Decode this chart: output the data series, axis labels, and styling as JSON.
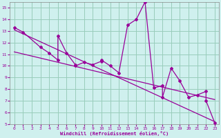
{
  "xlabel": "Windchill (Refroidissement éolien,°C)",
  "bg_color": "#cff0ee",
  "grid_color": "#99ccbb",
  "line_color": "#990099",
  "xlim": [
    -0.5,
    23.5
  ],
  "ylim": [
    5,
    15.5
  ],
  "yticks": [
    5,
    6,
    7,
    8,
    9,
    10,
    11,
    12,
    13,
    14,
    15
  ],
  "xticks": [
    0,
    1,
    2,
    3,
    4,
    5,
    6,
    7,
    8,
    9,
    10,
    11,
    12,
    13,
    14,
    15,
    16,
    17,
    18,
    19,
    20,
    21,
    22,
    23
  ],
  "series": [
    [
      0,
      13.3
    ],
    [
      1,
      12.9
    ],
    [
      3,
      11.6
    ],
    [
      4,
      11.1
    ],
    [
      5,
      10.5
    ],
    [
      5,
      12.6
    ],
    [
      6,
      11.1
    ],
    [
      7,
      10.1
    ],
    [
      7,
      10.0
    ],
    [
      8,
      10.3
    ],
    [
      9,
      10.1
    ],
    [
      10,
      10.4
    ],
    [
      10,
      10.5
    ],
    [
      11,
      10.0
    ],
    [
      12,
      9.4
    ],
    [
      13,
      13.5
    ],
    [
      14,
      14.0
    ],
    [
      15,
      15.5
    ],
    [
      16,
      8.1
    ],
    [
      17,
      8.3
    ],
    [
      17,
      7.3
    ],
    [
      18,
      9.8
    ],
    [
      19,
      8.7
    ],
    [
      20,
      7.3
    ],
    [
      21,
      7.5
    ],
    [
      22,
      7.8
    ],
    [
      22,
      7.0
    ],
    [
      23,
      5.1
    ]
  ],
  "trend_line": [
    [
      0,
      13.1
    ],
    [
      23,
      5.2
    ]
  ],
  "trend_line2": [
    [
      0,
      11.2
    ],
    [
      23,
      7.1
    ]
  ]
}
